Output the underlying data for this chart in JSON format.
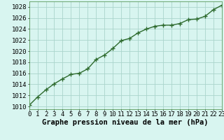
{
  "hours": [
    0,
    1,
    2,
    3,
    4,
    5,
    6,
    7,
    8,
    9,
    10,
    11,
    12,
    13,
    14,
    15,
    16,
    17,
    18,
    19,
    20,
    21,
    22,
    23
  ],
  "pressure": [
    1010.2,
    1011.7,
    1013.0,
    1014.1,
    1015.0,
    1015.8,
    1016.0,
    1016.8,
    1018.5,
    1019.3,
    1020.5,
    1021.9,
    1022.3,
    1023.3,
    1024.0,
    1024.5,
    1024.7,
    1024.7,
    1025.0,
    1025.7,
    1025.8,
    1026.3,
    1027.5,
    1028.3
  ],
  "line_color": "#2d6a2d",
  "marker": "+",
  "bg_color": "#d8f5f0",
  "grid_color": "#aad4cc",
  "xlabel": "Graphe pression niveau de la mer (hPa)",
  "xlabel_fontsize": 7.5,
  "ylabel_ticks": [
    1010,
    1012,
    1014,
    1016,
    1018,
    1020,
    1022,
    1024,
    1026,
    1028
  ],
  "xlim": [
    0,
    23
  ],
  "ylim": [
    1009.5,
    1029.0
  ],
  "tick_fontsize": 6.5,
  "linewidth": 1.0,
  "markersize": 4,
  "spine_color": "#5a9a5a"
}
